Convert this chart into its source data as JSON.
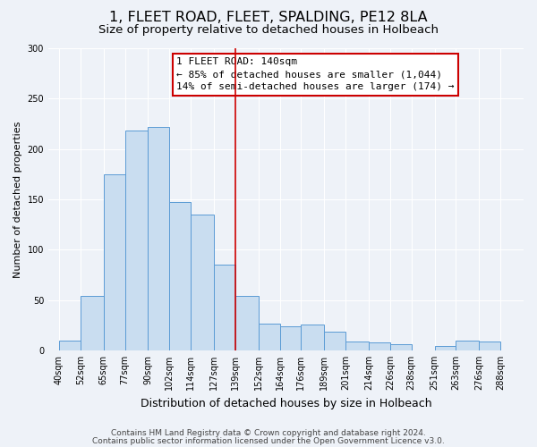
{
  "title": "1, FLEET ROAD, FLEET, SPALDING, PE12 8LA",
  "subtitle": "Size of property relative to detached houses in Holbeach",
  "xlabel": "Distribution of detached houses by size in Holbeach",
  "ylabel": "Number of detached properties",
  "bar_left_edges": [
    40,
    52,
    65,
    77,
    90,
    102,
    114,
    127,
    139,
    152,
    164,
    176,
    189,
    201,
    214,
    226,
    238,
    251,
    263,
    276
  ],
  "bar_heights": [
    10,
    54,
    175,
    218,
    222,
    147,
    135,
    85,
    54,
    27,
    24,
    26,
    19,
    9,
    8,
    6,
    0,
    4,
    10,
    9
  ],
  "bar_widths": [
    12,
    13,
    12,
    13,
    12,
    12,
    13,
    12,
    13,
    12,
    12,
    13,
    12,
    13,
    12,
    12,
    13,
    12,
    13,
    12
  ],
  "tick_labels": [
    "40sqm",
    "52sqm",
    "65sqm",
    "77sqm",
    "90sqm",
    "102sqm",
    "114sqm",
    "127sqm",
    "139sqm",
    "152sqm",
    "164sqm",
    "176sqm",
    "189sqm",
    "201sqm",
    "214sqm",
    "226sqm",
    "238sqm",
    "251sqm",
    "263sqm",
    "276sqm",
    "288sqm"
  ],
  "tick_positions": [
    40,
    52,
    65,
    77,
    90,
    102,
    114,
    127,
    139,
    152,
    164,
    176,
    189,
    201,
    214,
    226,
    238,
    251,
    263,
    276,
    288
  ],
  "bar_color": "#c9ddf0",
  "bar_edge_color": "#5b9bd5",
  "vline_x": 139,
  "vline_color": "#cc0000",
  "annotation_title": "1 FLEET ROAD: 140sqm",
  "annotation_line1": "← 85% of detached houses are smaller (1,044)",
  "annotation_line2": "14% of semi-detached houses are larger (174) →",
  "annotation_box_color": "#ffffff",
  "annotation_border_color": "#cc0000",
  "ylim": [
    0,
    300
  ],
  "yticks": [
    0,
    50,
    100,
    150,
    200,
    250,
    300
  ],
  "footer1": "Contains HM Land Registry data © Crown copyright and database right 2024.",
  "footer2": "Contains public sector information licensed under the Open Government Licence v3.0.",
  "background_color": "#eef2f8",
  "grid_color": "#ffffff",
  "title_fontsize": 11.5,
  "subtitle_fontsize": 9.5,
  "xlabel_fontsize": 9,
  "ylabel_fontsize": 8,
  "tick_fontsize": 7,
  "annotation_fontsize": 8,
  "footer_fontsize": 6.5
}
